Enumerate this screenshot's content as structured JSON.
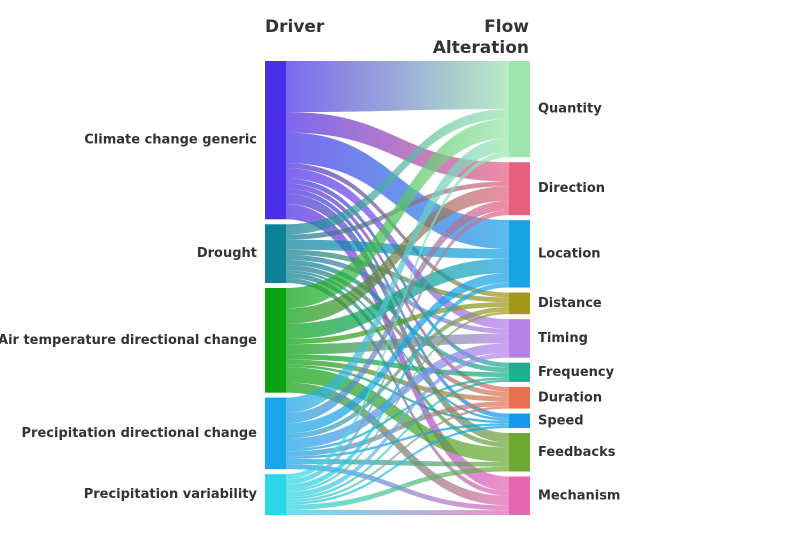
{
  "headers": {
    "left": "Driver",
    "right_line1": "Flow",
    "right_line2": "Alteration"
  },
  "chart_data": {
    "type": "sankey",
    "sources": [
      {
        "name": "Climate change generic",
        "color": "#4a2ee6"
      },
      {
        "name": "Drought",
        "color": "#0d8296"
      },
      {
        "name": "Air temperature directional change",
        "color": "#09a212"
      },
      {
        "name": "Precipitation directional change",
        "color": "#1aa4e9"
      },
      {
        "name": "Precipitation variability",
        "color": "#2ad7e6"
      }
    ],
    "targets": [
      {
        "name": "Quantity",
        "color": "#9ce6ad"
      },
      {
        "name": "Direction",
        "color": "#e8607f"
      },
      {
        "name": "Location",
        "color": "#17a3e6"
      },
      {
        "name": "Distance",
        "color": "#a59718"
      },
      {
        "name": "Timing",
        "color": "#b77fe8"
      },
      {
        "name": "Frequency",
        "color": "#1fae8f"
      },
      {
        "name": "Duration",
        "color": "#e8704f"
      },
      {
        "name": "Speed",
        "color": "#139be8"
      },
      {
        "name": "Feedbacks",
        "color": "#6ea834"
      },
      {
        "name": "Mechanism",
        "color": "#e766b4"
      }
    ],
    "flows": [
      [
        10,
        4,
        6,
        1,
        2,
        1,
        1,
        1,
        2,
        3
      ],
      [
        2,
        1,
        2,
        1,
        1,
        1,
        1,
        0.5,
        1,
        1
      ],
      [
        4,
        3,
        3,
        1,
        2,
        1,
        1,
        0.5,
        3,
        2
      ],
      [
        3,
        2,
        2,
        1,
        2,
        0.5,
        1,
        0.5,
        1,
        1
      ],
      [
        1,
        1,
        1,
        0.5,
        1,
        0.5,
        0.5,
        0.5,
        1,
        1
      ]
    ]
  }
}
